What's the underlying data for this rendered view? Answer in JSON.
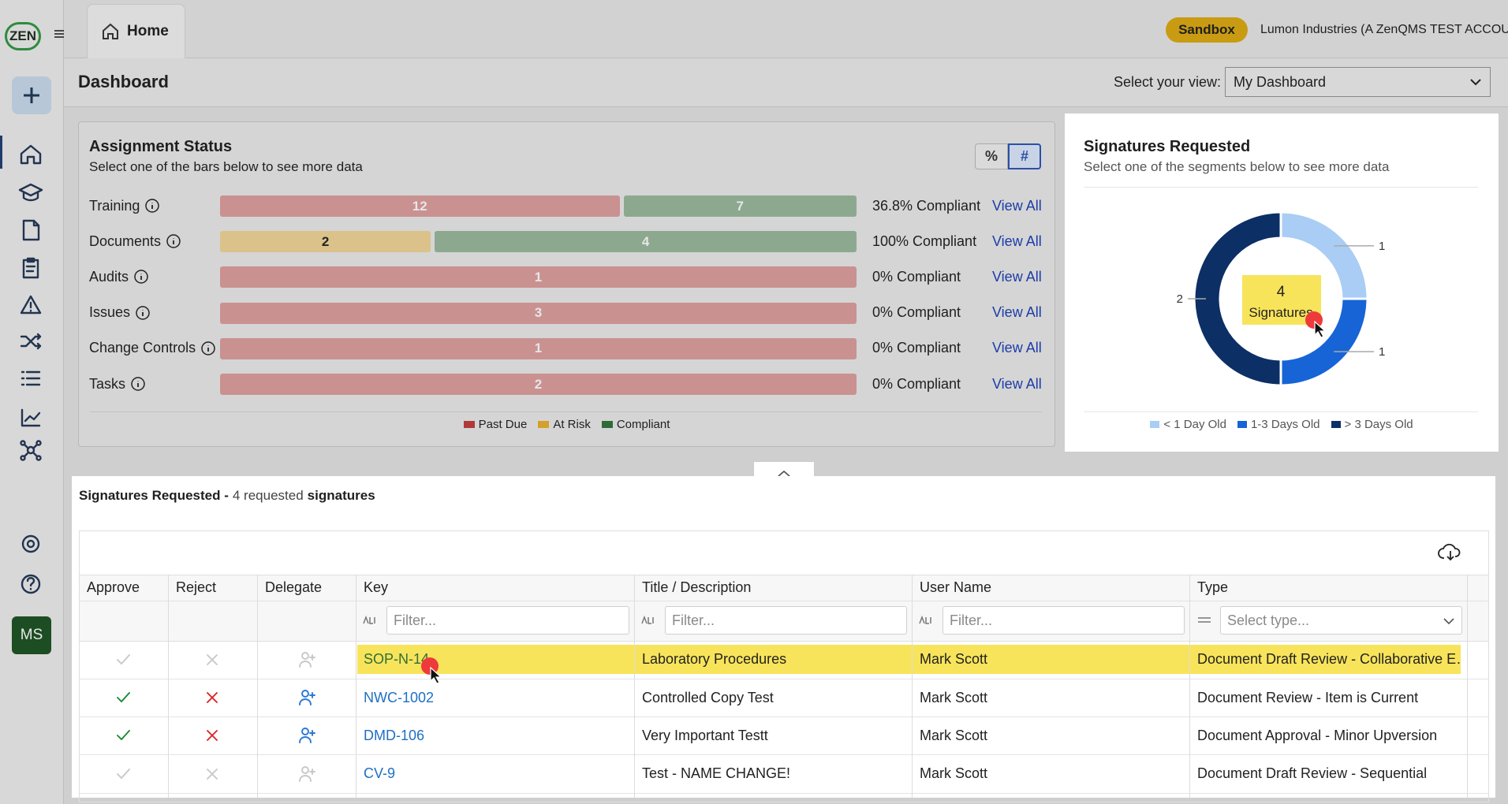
{
  "app": {
    "logo": "ZEN",
    "tab": "Home",
    "env_badge": "Sandbox",
    "account": "Lumon Industries (A ZenQMS TEST ACCOUNT)",
    "user_initials": "MS"
  },
  "dashboard": {
    "title": "Dashboard",
    "view_label": "Select your view:",
    "view_value": "My Dashboard"
  },
  "assignment_status": {
    "title": "Assignment Status",
    "subtitle": "Select one of the bars below to see more data",
    "toggle": [
      "%",
      "#"
    ],
    "toggle_selected": 1,
    "categories": [
      "Training",
      "Documents",
      "Audits",
      "Issues",
      "Change Controls",
      "Tasks"
    ],
    "series": [
      {
        "name": "Past Due",
        "color": "#b03a3a",
        "values": [
          12,
          null,
          1,
          3,
          1,
          2
        ]
      },
      {
        "name": "At Risk",
        "color": "#d4a02a",
        "values": [
          null,
          2,
          null,
          null,
          null,
          null
        ]
      },
      {
        "name": "Compliant",
        "color": "#2f6b36",
        "values": [
          7,
          4,
          null,
          null,
          null,
          null
        ]
      }
    ],
    "compliance": [
      "36.8% Compliant",
      "100% Compliant",
      "0% Compliant",
      "0% Compliant",
      "0% Compliant",
      "0% Compliant"
    ],
    "link": "View All"
  },
  "signatures_chart": {
    "title": "Signatures Requested",
    "subtitle": "Select one of the segments below to see more data",
    "center_value": 4,
    "center_label": "Signatures",
    "segments": [
      {
        "name": "< 1 Day Old",
        "color": "#a9cdf4",
        "value": 1
      },
      {
        "name": "1-3 Days Old",
        "color": "#1664d6",
        "value": 1
      },
      {
        "name": "> 3 Days Old",
        "color": "#0c2f66",
        "value": 2
      }
    ]
  },
  "signatures_table": {
    "heading": "Signatures Requested -",
    "count_text": "4 requested",
    "heading_tail": "signatures",
    "columns": [
      "Approve",
      "Reject",
      "Delegate",
      "Key",
      "Title / Description",
      "User Name",
      "Type"
    ],
    "filter_placeholder": "Filter...",
    "type_placeholder": "Select type...",
    "rows": [
      {
        "key": "SOP-N-14",
        "title": "Laboratory Procedures",
        "user": "Mark Scott",
        "type": "Document Draft Review - Collaborative E…",
        "actions_enabled": false,
        "highlighted": true
      },
      {
        "key": "NWC-1002",
        "title": "Controlled Copy Test",
        "user": "Mark Scott",
        "type": "Document Review - Item is Current",
        "actions_enabled": true,
        "highlighted": false
      },
      {
        "key": "DMD-106",
        "title": "Very Important Testt",
        "user": "Mark Scott",
        "type": "Document Approval - Minor Upversion",
        "actions_enabled": true,
        "highlighted": false
      },
      {
        "key": "CV-9",
        "title": "Test - NAME CHANGE!",
        "user": "Mark Scott",
        "type": "Document Draft Review - Sequential",
        "actions_enabled": false,
        "highlighted": false
      }
    ]
  }
}
